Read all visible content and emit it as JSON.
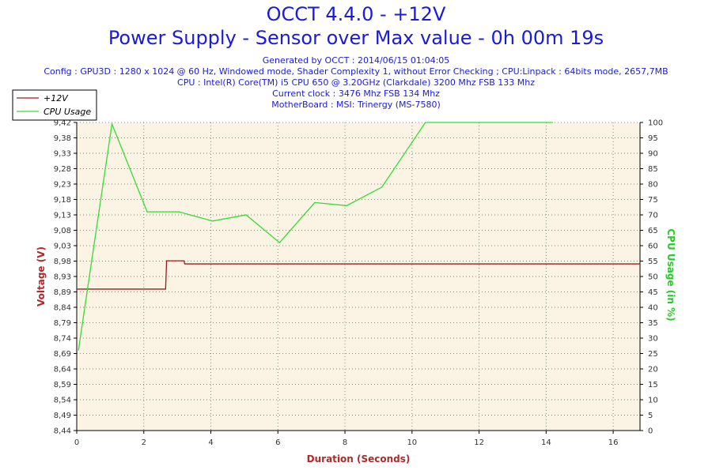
{
  "header": {
    "title": "OCCT 4.4.0 - +12V",
    "subtitle": "Power Supply - Sensor over Max value - 0h 00m 19s",
    "info_lines": [
      "Generated by OCCT : 2014/06/15 01:04:05",
      "Config : GPU3D : 1280 x 1024 @ 60 Hz, Windowed mode, Shader Complexity 1, without Error Checking ; CPU:Linpack : 64bits mode, 2657,7MB",
      "CPU : Intel(R) Core(TM) i5 CPU 650 @ 3.20GHz (Clarkdale) 3200 Mhz FSB 133 Mhz",
      "Current clock : 3476 Mhz FSB 134 Mhz",
      "MotherBoard : MSI: Trinergy (MS-7580)"
    ]
  },
  "colors": {
    "voltage": "#9b1d1d",
    "cpu": "#33dd33",
    "plot_bg": "#fbf3e4",
    "text_blue": "#1a1adc",
    "axis_label_red": "#b02a2a",
    "axis_label_green": "#22cc22"
  },
  "chart_data": {
    "type": "line",
    "title": "Power Supply - Sensor over Max value - 0h 00m 19s",
    "xlabel": "Duration (Seconds)",
    "ylabel_left": "Voltage (V)",
    "ylabel_right": "CPU Usage (in %)",
    "xlim": [
      0,
      16.8
    ],
    "x_ticks": [
      0,
      2,
      4,
      6,
      8,
      10,
      12,
      14,
      16
    ],
    "ylim_left": [
      8.44,
      9.42
    ],
    "y_ticks_left": [
      "9,42",
      "9,38",
      "9,33",
      "9,28",
      "9,23",
      "9,18",
      "9,13",
      "9,08",
      "9,03",
      "8,98",
      "8,93",
      "8,89",
      "8,84",
      "8,79",
      "8,74",
      "8,69",
      "8,64",
      "8,59",
      "8,54",
      "8,49",
      "8,44"
    ],
    "ylim_right": [
      0,
      100
    ],
    "y_ticks_right": [
      100,
      95,
      90,
      85,
      80,
      75,
      70,
      65,
      60,
      55,
      50,
      45,
      40,
      35,
      30,
      25,
      20,
      15,
      10,
      5,
      0
    ],
    "legend": {
      "position": "top-left"
    },
    "grid": true,
    "series": [
      {
        "name": "+12V",
        "axis": "left",
        "points": [
          [
            0,
            8.89
          ],
          [
            2.65,
            8.89
          ],
          [
            2.68,
            8.98
          ],
          [
            3.2,
            8.98
          ],
          [
            3.22,
            8.97
          ],
          [
            16.8,
            8.97
          ]
        ]
      },
      {
        "name": "CPU Usage",
        "axis": "right",
        "points": [
          [
            0.05,
            26
          ],
          [
            1.05,
            99.5
          ],
          [
            2.1,
            71
          ],
          [
            3.05,
            71
          ],
          [
            4.05,
            68
          ],
          [
            5.05,
            70
          ],
          [
            6.05,
            61
          ],
          [
            7.1,
            74
          ],
          [
            8.05,
            73
          ],
          [
            9.1,
            79
          ],
          [
            10.4,
            100
          ],
          [
            14.2,
            100
          ]
        ]
      }
    ]
  }
}
